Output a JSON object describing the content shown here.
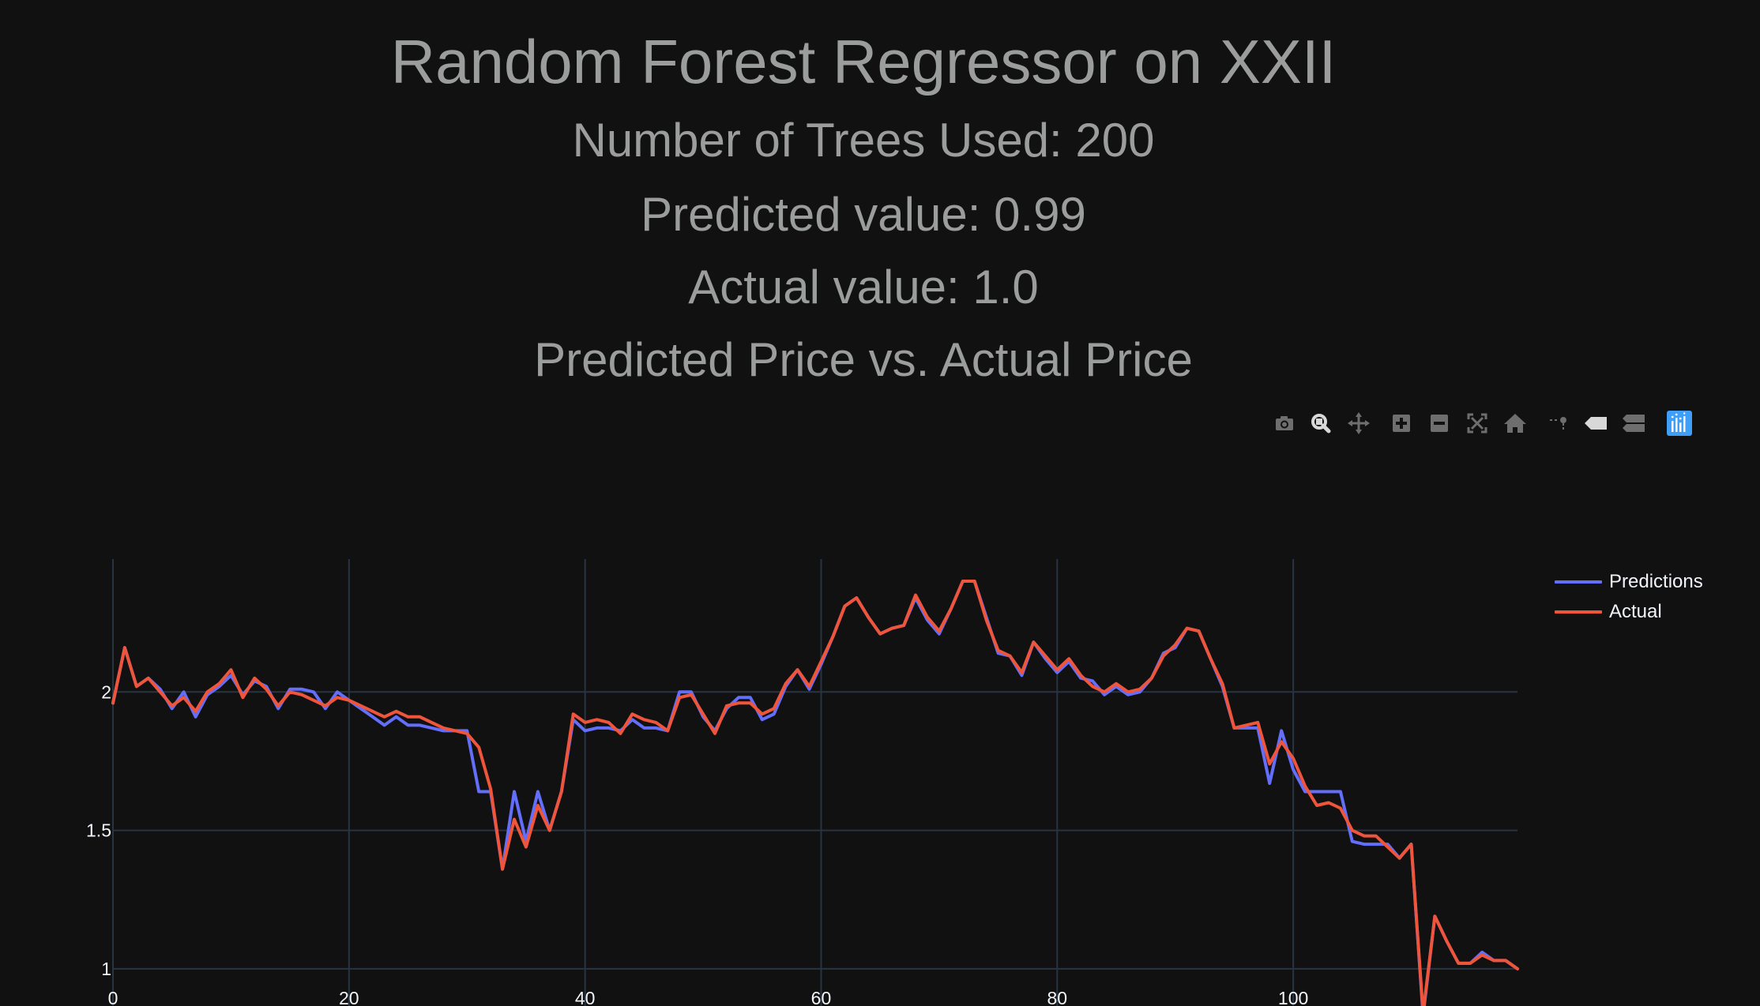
{
  "titles": {
    "main": "Random Forest Regressor on XXII",
    "trees": "Number of Trees Used: 200",
    "predicted": "Predicted value: 0.99",
    "actual": "Actual value: 1.0",
    "chart_title": "Predicted Price vs. Actual Price"
  },
  "modebar": {
    "buttons": [
      "camera-icon",
      "zoom-icon",
      "pan-icon",
      "zoom-in-icon",
      "zoom-out-icon",
      "autoscale-icon",
      "reset-axes-icon",
      "spike-lines-icon",
      "hover-closest-icon",
      "hover-compare-icon",
      "plotly-logo-icon"
    ]
  },
  "colors": {
    "background": "#111111",
    "title": "#9a9d9c",
    "grid": "#283442",
    "predictions": "#636efa",
    "actual": "#ef553b",
    "tick": "#f2f5fa",
    "modebar_icon": "#6e6e6e",
    "plotly_logo": "#3f9ef8"
  },
  "chart_data": {
    "type": "line",
    "title": "Predicted Price vs. Actual Price",
    "xlim": [
      0,
      119
    ],
    "ylim": [
      0.82,
      2.48
    ],
    "x_ticks": [
      "0",
      "20",
      "40",
      "60",
      "80",
      "100"
    ],
    "x_tick_values": [
      0,
      20,
      40,
      60,
      80,
      100
    ],
    "y_ticks": [
      "1",
      "1.5",
      "2"
    ],
    "y_tick_values": [
      1,
      1.5,
      2
    ],
    "grid": true,
    "legend_position": "top-right",
    "series": [
      {
        "name": "Predictions",
        "color": "#636efa",
        "values": [
          1.96,
          2.16,
          2.02,
          2.05,
          2.01,
          1.94,
          2.0,
          1.91,
          1.99,
          2.02,
          2.06,
          1.99,
          2.04,
          2.02,
          1.94,
          2.01,
          2.01,
          2.0,
          1.94,
          2.0,
          1.97,
          1.94,
          1.91,
          1.88,
          1.91,
          1.88,
          1.88,
          1.87,
          1.86,
          1.86,
          1.86,
          1.64,
          1.64,
          1.36,
          1.64,
          1.46,
          1.64,
          1.5,
          1.64,
          1.9,
          1.86,
          1.87,
          1.87,
          1.86,
          1.9,
          1.87,
          1.87,
          1.86,
          2.0,
          2.0,
          1.91,
          1.86,
          1.94,
          1.98,
          1.98,
          1.9,
          1.92,
          2.02,
          2.08,
          2.01,
          2.1,
          2.2,
          2.31,
          2.34,
          2.27,
          2.21,
          2.23,
          2.24,
          2.34,
          2.26,
          2.21,
          2.3,
          2.4,
          2.4,
          2.27,
          2.14,
          2.13,
          2.06,
          2.18,
          2.12,
          2.07,
          2.11,
          2.05,
          2.04,
          1.99,
          2.02,
          1.99,
          2.0,
          2.05,
          2.14,
          2.16,
          2.23,
          2.22,
          2.12,
          2.02,
          1.87,
          1.87,
          1.87,
          1.67,
          1.86,
          1.72,
          1.64,
          1.64,
          1.64,
          1.64,
          1.46,
          1.45,
          1.45,
          1.45,
          1.4,
          1.45,
          0.83,
          1.19,
          1.1,
          1.02,
          1.02,
          1.06,
          1.03,
          1.03,
          1.0
        ]
      },
      {
        "name": "Actual",
        "color": "#ef553b",
        "values": [
          1.96,
          2.16,
          2.02,
          2.05,
          2.0,
          1.95,
          1.98,
          1.93,
          2.0,
          2.03,
          2.08,
          1.98,
          2.05,
          2.01,
          1.95,
          2.0,
          1.99,
          1.97,
          1.95,
          1.98,
          1.97,
          1.95,
          1.93,
          1.91,
          1.93,
          1.91,
          1.91,
          1.89,
          1.87,
          1.86,
          1.85,
          1.8,
          1.65,
          1.36,
          1.54,
          1.44,
          1.59,
          1.5,
          1.64,
          1.92,
          1.89,
          1.9,
          1.89,
          1.85,
          1.92,
          1.9,
          1.89,
          1.86,
          1.98,
          1.99,
          1.92,
          1.85,
          1.95,
          1.96,
          1.96,
          1.92,
          1.94,
          2.03,
          2.08,
          2.02,
          2.11,
          2.2,
          2.31,
          2.34,
          2.27,
          2.21,
          2.23,
          2.24,
          2.35,
          2.27,
          2.22,
          2.3,
          2.4,
          2.4,
          2.26,
          2.15,
          2.13,
          2.07,
          2.18,
          2.13,
          2.08,
          2.12,
          2.06,
          2.02,
          2.0,
          2.03,
          2.0,
          2.01,
          2.05,
          2.13,
          2.17,
          2.23,
          2.22,
          2.12,
          2.03,
          1.87,
          1.88,
          1.89,
          1.74,
          1.82,
          1.76,
          1.66,
          1.59,
          1.6,
          1.58,
          1.5,
          1.48,
          1.48,
          1.44,
          1.4,
          1.45,
          0.84,
          1.19,
          1.1,
          1.02,
          1.02,
          1.05,
          1.03,
          1.03,
          1.0
        ]
      }
    ]
  }
}
